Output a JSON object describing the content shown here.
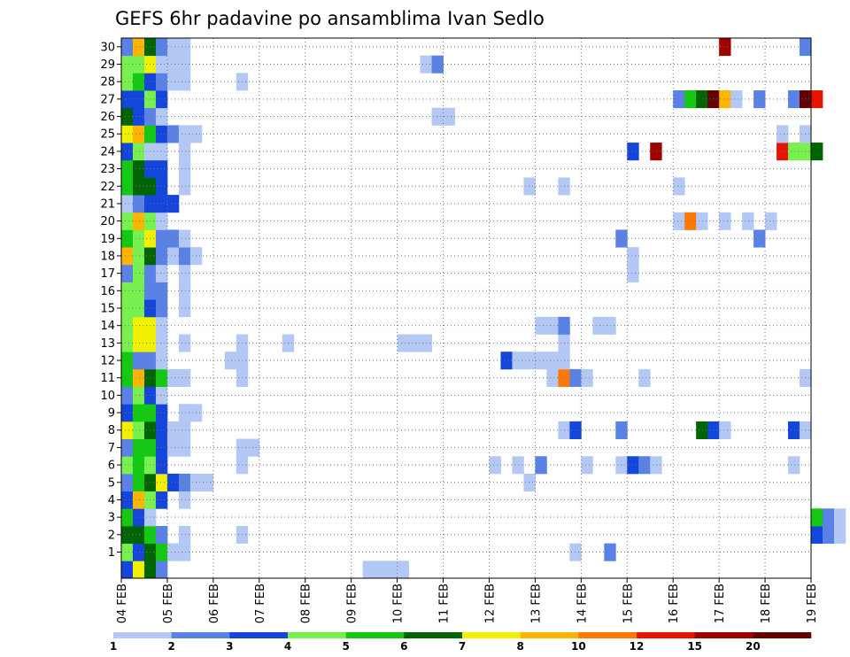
{
  "chart_data": {
    "type": "heatmap",
    "title": "GEFS 6hr padavine po ansamblima Ivan Sedlo",
    "x_tick_labels": [
      "04 FEB",
      "05 FEB",
      "06 FEB",
      "07 FEB",
      "08 FEB",
      "09 FEB",
      "10 FEB",
      "11 FEB",
      "12 FEB",
      "13 FEB",
      "14 FEB",
      "15 FEB",
      "16 FEB",
      "17 FEB",
      "18 FEB",
      "19 FEB"
    ],
    "y_tick_labels": [
      "1",
      "2",
      "3",
      "4",
      "5",
      "6",
      "7",
      "8",
      "9",
      "10",
      "11",
      "12",
      "13",
      "14",
      "15",
      "16",
      "17",
      "18",
      "19",
      "20",
      "21",
      "22",
      "23",
      "24",
      "25",
      "26",
      "27",
      "28",
      "29",
      "30"
    ],
    "xlim": [
      "04 FEB 00Z",
      "19 FEB 00Z"
    ],
    "ylim": [
      0,
      30
    ],
    "grid": true,
    "legend": {
      "position": "bottom",
      "thresholds": [
        "1",
        "2",
        "3",
        "4",
        "5",
        "6",
        "7",
        "8",
        "10",
        "12",
        "15",
        "20"
      ],
      "colors": [
        "#b4c8f5",
        "#5a82e6",
        "#1446dc",
        "#78f050",
        "#14c814",
        "#006400",
        "#f0f000",
        "#ffb400",
        "#ff7800",
        "#e61400",
        "#a00000",
        "#640000"
      ]
    },
    "x_step_hours": 6,
    "rows": [
      {
        "member": 0,
        "cells": [
          [
            0,
            3
          ],
          [
            1,
            7
          ],
          [
            2,
            6
          ],
          [
            3,
            2
          ],
          [
            21,
            1
          ],
          [
            22,
            1
          ],
          [
            23,
            1
          ],
          [
            24,
            1
          ]
        ]
      },
      {
        "member": 1,
        "cells": [
          [
            0,
            4
          ],
          [
            1,
            3
          ],
          [
            2,
            6
          ],
          [
            3,
            5
          ],
          [
            4,
            1
          ],
          [
            5,
            1
          ],
          [
            39,
            1
          ],
          [
            42,
            2
          ]
        ]
      },
      {
        "member": 2,
        "cells": [
          [
            0,
            6
          ],
          [
            1,
            6
          ],
          [
            2,
            5
          ],
          [
            3,
            2
          ],
          [
            5,
            1
          ],
          [
            10,
            1
          ],
          [
            60,
            3
          ],
          [
            61,
            2
          ],
          [
            62,
            1
          ],
          [
            64,
            1
          ]
        ]
      },
      {
        "member": 3,
        "cells": [
          [
            0,
            5
          ],
          [
            1,
            3
          ],
          [
            2,
            1
          ],
          [
            60,
            5
          ],
          [
            61,
            2
          ],
          [
            62,
            1
          ]
        ]
      },
      {
        "member": 4,
        "cells": [
          [
            0,
            3
          ],
          [
            1,
            8
          ],
          [
            2,
            4
          ],
          [
            3,
            3
          ],
          [
            5,
            1
          ]
        ]
      },
      {
        "member": 5,
        "cells": [
          [
            0,
            2
          ],
          [
            1,
            5
          ],
          [
            2,
            6
          ],
          [
            3,
            7
          ],
          [
            4,
            3
          ],
          [
            5,
            2
          ],
          [
            6,
            1
          ],
          [
            7,
            1
          ],
          [
            35,
            1
          ]
        ]
      },
      {
        "member": 6,
        "cells": [
          [
            0,
            4
          ],
          [
            1,
            5
          ],
          [
            2,
            4
          ],
          [
            3,
            3
          ],
          [
            10,
            1
          ],
          [
            32,
            1
          ],
          [
            34,
            1
          ],
          [
            36,
            2
          ],
          [
            40,
            1
          ],
          [
            43,
            1
          ],
          [
            44,
            3
          ],
          [
            45,
            2
          ],
          [
            46,
            1
          ],
          [
            58,
            1
          ]
        ]
      },
      {
        "member": 7,
        "cells": [
          [
            0,
            2
          ],
          [
            1,
            5
          ],
          [
            2,
            5
          ],
          [
            3,
            3
          ],
          [
            4,
            1
          ],
          [
            5,
            1
          ],
          [
            10,
            1
          ],
          [
            11,
            1
          ]
        ]
      },
      {
        "member": 8,
        "cells": [
          [
            0,
            7
          ],
          [
            1,
            4
          ],
          [
            2,
            6
          ],
          [
            3,
            3
          ],
          [
            4,
            1
          ],
          [
            5,
            1
          ],
          [
            38,
            1
          ],
          [
            39,
            3
          ],
          [
            43,
            2
          ],
          [
            50,
            6
          ],
          [
            51,
            3
          ],
          [
            52,
            1
          ],
          [
            58,
            3
          ],
          [
            59,
            1
          ]
        ]
      },
      {
        "member": 9,
        "cells": [
          [
            0,
            3
          ],
          [
            1,
            5
          ],
          [
            2,
            5
          ],
          [
            3,
            3
          ],
          [
            5,
            1
          ],
          [
            6,
            1
          ]
        ]
      },
      {
        "member": 10,
        "cells": [
          [
            0,
            2
          ],
          [
            1,
            4
          ],
          [
            2,
            3
          ],
          [
            3,
            1
          ]
        ]
      },
      {
        "member": 11,
        "cells": [
          [
            0,
            5
          ],
          [
            1,
            8
          ],
          [
            2,
            6
          ],
          [
            3,
            5
          ],
          [
            4,
            1
          ],
          [
            5,
            1
          ],
          [
            10,
            1
          ],
          [
            37,
            1
          ],
          [
            38,
            9
          ],
          [
            39,
            2
          ],
          [
            40,
            1
          ],
          [
            45,
            1
          ],
          [
            59,
            1
          ]
        ]
      },
      {
        "member": 12,
        "cells": [
          [
            0,
            5
          ],
          [
            1,
            2
          ],
          [
            2,
            2
          ],
          [
            3,
            1
          ],
          [
            9,
            1
          ],
          [
            10,
            1
          ],
          [
            33,
            3
          ],
          [
            34,
            1
          ],
          [
            35,
            1
          ],
          [
            36,
            1
          ],
          [
            37,
            1
          ],
          [
            38,
            1
          ]
        ]
      },
      {
        "member": 13,
        "cells": [
          [
            0,
            4
          ],
          [
            1,
            7
          ],
          [
            2,
            7
          ],
          [
            3,
            1
          ],
          [
            5,
            1
          ],
          [
            10,
            1
          ],
          [
            14,
            1
          ],
          [
            24,
            1
          ],
          [
            25,
            1
          ],
          [
            26,
            1
          ],
          [
            38,
            1
          ]
        ]
      },
      {
        "member": 14,
        "cells": [
          [
            0,
            4
          ],
          [
            1,
            7
          ],
          [
            2,
            7
          ],
          [
            3,
            1
          ],
          [
            36,
            1
          ],
          [
            37,
            1
          ],
          [
            38,
            2
          ],
          [
            41,
            1
          ],
          [
            42,
            1
          ]
        ]
      },
      {
        "member": 15,
        "cells": [
          [
            0,
            4
          ],
          [
            1,
            4
          ],
          [
            2,
            3
          ],
          [
            3,
            2
          ],
          [
            5,
            1
          ]
        ]
      },
      {
        "member": 16,
        "cells": [
          [
            0,
            4
          ],
          [
            1,
            4
          ],
          [
            2,
            2
          ],
          [
            3,
            2
          ],
          [
            5,
            1
          ]
        ]
      },
      {
        "member": 17,
        "cells": [
          [
            0,
            2
          ],
          [
            1,
            4
          ],
          [
            2,
            2
          ],
          [
            3,
            1
          ],
          [
            5,
            1
          ],
          [
            44,
            1
          ]
        ]
      },
      {
        "member": 18,
        "cells": [
          [
            0,
            8
          ],
          [
            1,
            4
          ],
          [
            2,
            6
          ],
          [
            3,
            2
          ],
          [
            4,
            1
          ],
          [
            5,
            2
          ],
          [
            6,
            1
          ],
          [
            44,
            1
          ]
        ]
      },
      {
        "member": 19,
        "cells": [
          [
            0,
            5
          ],
          [
            1,
            4
          ],
          [
            2,
            7
          ],
          [
            3,
            2
          ],
          [
            4,
            2
          ],
          [
            5,
            1
          ],
          [
            43,
            2
          ],
          [
            55,
            2
          ]
        ]
      },
      {
        "member": 20,
        "cells": [
          [
            0,
            4
          ],
          [
            1,
            8
          ],
          [
            2,
            4
          ],
          [
            3,
            1
          ],
          [
            48,
            1
          ],
          [
            49,
            9
          ],
          [
            50,
            1
          ],
          [
            52,
            1
          ],
          [
            54,
            1
          ],
          [
            56,
            1
          ]
        ]
      },
      {
        "member": 21,
        "cells": [
          [
            0,
            1
          ],
          [
            1,
            2
          ],
          [
            2,
            3
          ],
          [
            3,
            3
          ],
          [
            4,
            3
          ]
        ]
      },
      {
        "member": 22,
        "cells": [
          [
            0,
            5
          ],
          [
            1,
            6
          ],
          [
            2,
            6
          ],
          [
            3,
            3
          ],
          [
            5,
            1
          ],
          [
            35,
            1
          ],
          [
            38,
            1
          ],
          [
            48,
            1
          ]
        ]
      },
      {
        "member": 23,
        "cells": [
          [
            0,
            5
          ],
          [
            1,
            6
          ],
          [
            2,
            3
          ],
          [
            3,
            3
          ],
          [
            5,
            1
          ]
        ]
      },
      {
        "member": 24,
        "cells": [
          [
            0,
            3
          ],
          [
            1,
            4
          ],
          [
            2,
            1
          ],
          [
            3,
            1
          ],
          [
            5,
            1
          ],
          [
            44,
            3
          ],
          [
            46,
            11
          ],
          [
            57,
            10
          ],
          [
            58,
            4
          ],
          [
            59,
            4
          ],
          [
            60,
            6
          ]
        ]
      },
      {
        "member": 25,
        "cells": [
          [
            0,
            7
          ],
          [
            1,
            8
          ],
          [
            2,
            5
          ],
          [
            3,
            3
          ],
          [
            4,
            2
          ],
          [
            5,
            1
          ],
          [
            6,
            1
          ],
          [
            57,
            1
          ],
          [
            59,
            1
          ]
        ]
      },
      {
        "member": 26,
        "cells": [
          [
            0,
            6
          ],
          [
            1,
            3
          ],
          [
            2,
            2
          ],
          [
            3,
            1
          ],
          [
            27,
            1
          ],
          [
            28,
            1
          ]
        ]
      },
      {
        "member": 27,
        "cells": [
          [
            0,
            3
          ],
          [
            1,
            3
          ],
          [
            2,
            4
          ],
          [
            3,
            3
          ],
          [
            48,
            2
          ],
          [
            49,
            5
          ],
          [
            50,
            6
          ],
          [
            51,
            12
          ],
          [
            52,
            8
          ],
          [
            53,
            1
          ],
          [
            55,
            2
          ],
          [
            58,
            2
          ],
          [
            59,
            12
          ],
          [
            60,
            10
          ]
        ]
      },
      {
        "member": 28,
        "cells": [
          [
            0,
            4
          ],
          [
            1,
            5
          ],
          [
            2,
            3
          ],
          [
            3,
            2
          ],
          [
            4,
            1
          ],
          [
            5,
            1
          ],
          [
            10,
            1
          ]
        ]
      },
      {
        "member": 29,
        "cells": [
          [
            0,
            4
          ],
          [
            1,
            4
          ],
          [
            2,
            7
          ],
          [
            3,
            1
          ],
          [
            4,
            1
          ],
          [
            5,
            1
          ],
          [
            26,
            1
          ],
          [
            27,
            2
          ]
        ]
      },
      {
        "member": 30,
        "cells": [
          [
            0,
            2
          ],
          [
            1,
            8
          ],
          [
            2,
            6
          ],
          [
            3,
            2
          ],
          [
            4,
            1
          ],
          [
            5,
            1
          ],
          [
            52,
            11
          ],
          [
            59,
            2
          ]
        ]
      }
    ]
  }
}
